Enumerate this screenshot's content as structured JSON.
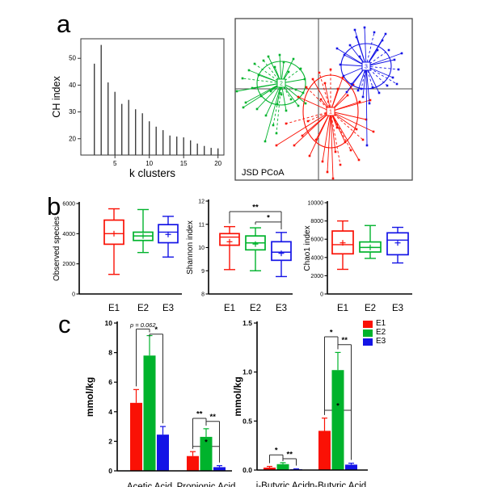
{
  "panels": {
    "a": "a",
    "b": "b",
    "c": "c"
  },
  "legend": {
    "items": [
      {
        "label": "E1",
        "color": "#fa1105"
      },
      {
        "label": "E2",
        "color": "#00b32c"
      },
      {
        "label": "E3",
        "color": "#1414e6"
      }
    ]
  },
  "chart_data": [
    {
      "id": "ch_index",
      "type": "spike-bar",
      "xlabel": "k clusters",
      "ylabel": "CH index",
      "x": [
        2,
        3,
        4,
        5,
        6,
        7,
        8,
        9,
        10,
        11,
        12,
        13,
        14,
        15,
        16,
        17,
        18,
        19,
        20
      ],
      "values": [
        48,
        55,
        41,
        37.5,
        33,
        34.5,
        31,
        29.5,
        26.5,
        24.5,
        23.2,
        21.2,
        20.8,
        20.5,
        19.4,
        18.2,
        17.3,
        16.6,
        16.4
      ],
      "ylim": [
        13.9,
        57.3
      ],
      "yticks": [
        20,
        30,
        40,
        50
      ],
      "ytick_labels": [
        "20",
        "30",
        "40",
        "50"
      ],
      "xticks": [
        5,
        10,
        15,
        20
      ],
      "xtick_labels": [
        "5",
        "10",
        "15",
        "20"
      ],
      "bar_color": "#3f3f3f"
    },
    {
      "id": "jsd_pcoa",
      "type": "cluster-scatter",
      "label": "JSD PCoA",
      "clusters": [
        {
          "name": "cluster-2",
          "label": "2",
          "color": "#00b32c",
          "center": [
            63,
            88
          ],
          "ellipse": [
            30,
            27
          ],
          "points": [
            [
              -55,
              10
            ],
            [
              -48,
              -6
            ],
            [
              -44,
              24
            ],
            [
              -40,
              -16
            ],
            [
              -36,
              6
            ],
            [
              -33,
              -24
            ],
            [
              -30,
              32
            ],
            [
              -28,
              -10
            ],
            [
              -25,
              16
            ],
            [
              -22,
              -28
            ],
            [
              -19,
              40
            ],
            [
              -16,
              -33
            ],
            [
              -13,
              10
            ],
            [
              -10,
              52
            ],
            [
              -8,
              -20
            ],
            [
              -5,
              26
            ],
            [
              -2,
              -35
            ],
            [
              0,
              14
            ],
            [
              3,
              -26
            ],
            [
              6,
              34
            ],
            [
              9,
              -14
            ],
            [
              12,
              20
            ],
            [
              15,
              -30
            ],
            [
              18,
              8
            ],
            [
              21,
              28
            ],
            [
              24,
              -18
            ],
            [
              27,
              12
            ],
            [
              30,
              25
            ],
            [
              -20,
              72
            ],
            [
              -6,
              62
            ],
            [
              29,
              -5
            ],
            [
              -47,
              30
            ]
          ]
        },
        {
          "name": "cluster-1",
          "label": "1",
          "color": "#fa1105",
          "center": [
            124,
            123
          ],
          "ellipse": [
            34,
            45
          ],
          "points": [
            [
              -67,
              42
            ],
            [
              -55,
              15
            ],
            [
              -45,
              42
            ],
            [
              -40,
              -18
            ],
            [
              -35,
              30
            ],
            [
              -30,
              -30
            ],
            [
              -26,
              55
            ],
            [
              -22,
              -40
            ],
            [
              -18,
              35
            ],
            [
              -14,
              -48
            ],
            [
              -10,
              62
            ],
            [
              -7,
              -35
            ],
            [
              -4,
              75
            ],
            [
              0,
              -52
            ],
            [
              3,
              83
            ],
            [
              6,
              50
            ],
            [
              9,
              -28
            ],
            [
              12,
              66
            ],
            [
              15,
              -42
            ],
            [
              18,
              38
            ],
            [
              21,
              -20
            ],
            [
              25,
              48
            ],
            [
              28,
              -33
            ],
            [
              32,
              22
            ],
            [
              36,
              -12
            ],
            [
              40,
              35
            ],
            [
              44,
              10
            ],
            [
              49,
              -14
            ],
            [
              53,
              25
            ],
            [
              -28,
              12
            ],
            [
              -12,
              -15
            ],
            [
              8,
              20
            ],
            [
              35,
              60
            ]
          ]
        },
        {
          "name": "cluster-3",
          "label": "3",
          "color": "#1414e6",
          "center": [
            168,
            67
          ],
          "ellipse": [
            31,
            28
          ],
          "points": [
            [
              -2,
              -48
            ],
            [
              10,
              -42
            ],
            [
              -12,
              -36
            ],
            [
              20,
              -32
            ],
            [
              -20,
              -26
            ],
            [
              28,
              -20
            ],
            [
              -27,
              -14
            ],
            [
              35,
              -8
            ],
            [
              -32,
              -2
            ],
            [
              40,
              4
            ],
            [
              -28,
              12
            ],
            [
              33,
              14
            ],
            [
              -18,
              22
            ],
            [
              26,
              24
            ],
            [
              -10,
              30
            ],
            [
              16,
              33
            ],
            [
              -4,
              38
            ],
            [
              8,
              26
            ],
            [
              -24,
              32
            ],
            [
              44,
              -16
            ],
            [
              -36,
              -22
            ],
            [
              38,
              22
            ],
            [
              24,
              -40
            ],
            [
              -14,
              -45
            ],
            [
              4,
              46
            ],
            [
              -6,
              28
            ],
            [
              1,
              98
            ],
            [
              14,
              -20
            ],
            [
              -8,
              -12
            ]
          ]
        }
      ]
    },
    {
      "id": "observed_species",
      "type": "box",
      "ylabel": "Observed species",
      "ylim": [
        0,
        6000
      ],
      "yticks": [
        0,
        2000,
        4000,
        6000
      ],
      "ytick_labels": [
        "0",
        "2000",
        "4000",
        "6000"
      ],
      "categories": [
        "E1",
        "E2",
        "E3"
      ],
      "colors": [
        "#fa1105",
        "#00b32c",
        "#1414e6"
      ],
      "boxes": [
        {
          "low": 1300,
          "q1": 3300,
          "median": 4000,
          "q3": 4900,
          "high": 5650,
          "mean": 4000
        },
        {
          "low": 2750,
          "q1": 3550,
          "median": 3850,
          "q3": 4100,
          "high": 5600,
          "mean": 3850
        },
        {
          "low": 2450,
          "q1": 3400,
          "median": 4100,
          "q3": 4600,
          "high": 5150,
          "mean": 3950
        }
      ],
      "significance": []
    },
    {
      "id": "shannon_index",
      "type": "box",
      "ylabel": "Shannon index",
      "ylim": [
        8,
        12
      ],
      "yticks": [
        8,
        9,
        10,
        11,
        12
      ],
      "ytick_labels": [
        "8",
        "9",
        "10",
        "11",
        "12"
      ],
      "categories": [
        "E1",
        "E2",
        "E3"
      ],
      "colors": [
        "#fa1105",
        "#00b32c",
        "#1414e6"
      ],
      "boxes": [
        {
          "low": 9.05,
          "q1": 10.1,
          "median": 10.45,
          "q3": 10.6,
          "high": 10.9,
          "mean": 10.25
        },
        {
          "low": 9.0,
          "q1": 9.9,
          "median": 10.2,
          "q3": 10.5,
          "high": 10.85,
          "mean": 10.15
        },
        {
          "low": 8.75,
          "q1": 9.45,
          "median": 9.8,
          "q3": 10.25,
          "high": 10.65,
          "mean": 9.75
        }
      ],
      "significance": [
        {
          "from": 0,
          "to": 2,
          "label": "**",
          "y": 11.55
        },
        {
          "from": 1,
          "to": 2,
          "label": "*",
          "y": 11.1
        }
      ]
    },
    {
      "id": "chao1_index",
      "type": "box",
      "ylabel": "Chao1 index",
      "ylim": [
        0,
        10000
      ],
      "yticks": [
        0,
        2000,
        4000,
        6000,
        8000,
        10000
      ],
      "ytick_labels": [
        "0",
        "2000",
        "4000",
        "6000",
        "8000",
        "10000"
      ],
      "categories": [
        "E1",
        "E2",
        "E3"
      ],
      "colors": [
        "#fa1105",
        "#00b32c",
        "#1414e6"
      ],
      "boxes": [
        {
          "low": 2700,
          "q1": 4400,
          "median": 5400,
          "q3": 6900,
          "high": 8000,
          "mean": 5600
        },
        {
          "low": 3900,
          "q1": 4600,
          "median": 5100,
          "q3": 5700,
          "high": 7500,
          "mean": 5100
        },
        {
          "low": 3400,
          "q1": 4300,
          "median": 5900,
          "q3": 6700,
          "high": 7300,
          "mean": 5600
        }
      ],
      "significance": []
    },
    {
      "id": "scfa_major",
      "type": "grouped-bar",
      "ylabel": "mmol/kg",
      "ylim": [
        0,
        10
      ],
      "yticks": [
        0,
        2,
        4,
        6,
        8,
        10
      ],
      "ytick_labels": [
        "0",
        "2",
        "4",
        "6",
        "8",
        "10"
      ],
      "groups": [
        "Acetic Acid",
        "Propionic Acid"
      ],
      "series": [
        {
          "name": "E1",
          "color": "#fa1105",
          "values": [
            4.6,
            1.0
          ],
          "errors": [
            0.9,
            0.3
          ]
        },
        {
          "name": "E2",
          "color": "#00b32c",
          "values": [
            7.8,
            2.3
          ],
          "errors": [
            1.35,
            0.55
          ]
        },
        {
          "name": "E3",
          "color": "#1414e6",
          "values": [
            2.45,
            0.25
          ],
          "errors": [
            0.55,
            0.1
          ]
        }
      ],
      "significance": [
        {
          "gf": 0,
          "sf": 0,
          "gt": 0,
          "st": 1,
          "label": "p = 0.062",
          "y": 9.6,
          "italic": true
        },
        {
          "gf": 0,
          "sf": 1,
          "gt": 0,
          "st": 2,
          "label": "*",
          "y": 9.25
        },
        {
          "gf": 1,
          "sf": 0,
          "gt": 1,
          "st": 1,
          "label": "**",
          "y": 3.55
        },
        {
          "gf": 1,
          "sf": 1,
          "gt": 1,
          "st": 2,
          "label": "**",
          "y": 3.35
        },
        {
          "gf": 1,
          "sf": 0,
          "gt": 1,
          "st": 2,
          "label": "*",
          "y": 1.65,
          "behind": true
        }
      ]
    },
    {
      "id": "scfa_minor",
      "type": "grouped-bar",
      "ylabel": "mmol/kg",
      "ylim": [
        0,
        1.5
      ],
      "yticks": [
        0,
        0.5,
        1.0,
        1.5
      ],
      "ytick_labels": [
        "0.0",
        "0.5",
        "1.0",
        "1.5"
      ],
      "groups": [
        "i-Butyric Acid",
        "n-Butyric Acid"
      ],
      "series": [
        {
          "name": "E1",
          "color": "#fa1105",
          "values": [
            0.025,
            0.4
          ],
          "errors": [
            0.012,
            0.13
          ]
        },
        {
          "name": "E2",
          "color": "#00b32c",
          "values": [
            0.06,
            1.02
          ],
          "errors": [
            0.015,
            0.18
          ]
        },
        {
          "name": "E3",
          "color": "#1414e6",
          "values": [
            0.008,
            0.055
          ],
          "errors": [
            0.004,
            0.015
          ]
        }
      ],
      "significance": [
        {
          "gf": 0,
          "sf": 0,
          "gt": 0,
          "st": 1,
          "label": "*",
          "y": 0.155
        },
        {
          "gf": 0,
          "sf": 1,
          "gt": 0,
          "st": 2,
          "label": "**",
          "y": 0.115
        },
        {
          "gf": 1,
          "sf": 0,
          "gt": 1,
          "st": 1,
          "label": "*",
          "y": 1.36
        },
        {
          "gf": 1,
          "sf": 1,
          "gt": 1,
          "st": 2,
          "label": "**",
          "y": 1.28
        },
        {
          "gf": 1,
          "sf": 0,
          "gt": 1,
          "st": 2,
          "label": "*",
          "y": 0.61,
          "behind": true
        }
      ]
    }
  ]
}
